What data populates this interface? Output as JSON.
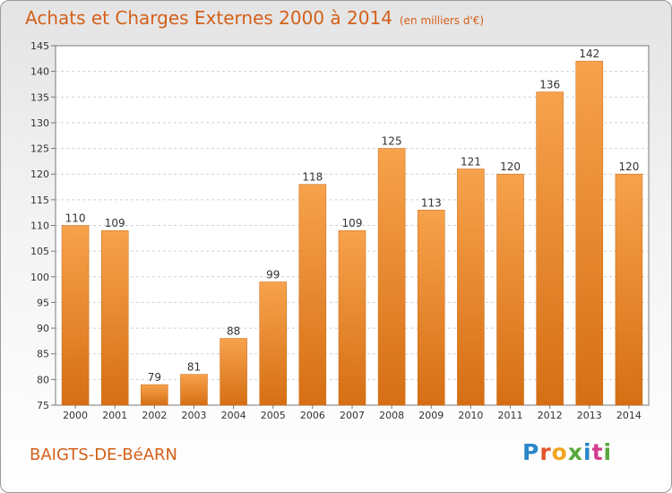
{
  "header": {
    "title": "Achats et Charges Externes 2000 à 2014",
    "unit": "(en milliers d'€)"
  },
  "footer": {
    "city": "BAIGTS-DE-BéARN",
    "logo": "Proxiti"
  },
  "colors": {
    "title": "#d4601a",
    "bar_light": "#f7a24c",
    "bar_dark": "#d66f14",
    "logo_letters": [
      "#2a86c8",
      "#e0542a",
      "#f2a51f",
      "#56a83a",
      "#2a86c8",
      "#d43c8c",
      "#56a83a"
    ]
  },
  "chart_data": {
    "type": "bar",
    "title": "Achats et Charges Externes 2000 à 2014",
    "subtitle": "(en milliers d'€)",
    "categories": [
      "2000",
      "2001",
      "2002",
      "2003",
      "2004",
      "2005",
      "2006",
      "2007",
      "2008",
      "2009",
      "2010",
      "2011",
      "2012",
      "2013",
      "2014"
    ],
    "values": [
      110,
      109,
      79,
      81,
      88,
      99,
      118,
      109,
      125,
      113,
      121,
      120,
      136,
      142,
      120
    ],
    "ylim": [
      75,
      145
    ],
    "yticks": [
      75,
      80,
      85,
      90,
      95,
      100,
      105,
      110,
      115,
      120,
      125,
      130,
      135,
      140,
      145
    ],
    "grid": true,
    "data_labels": true
  }
}
